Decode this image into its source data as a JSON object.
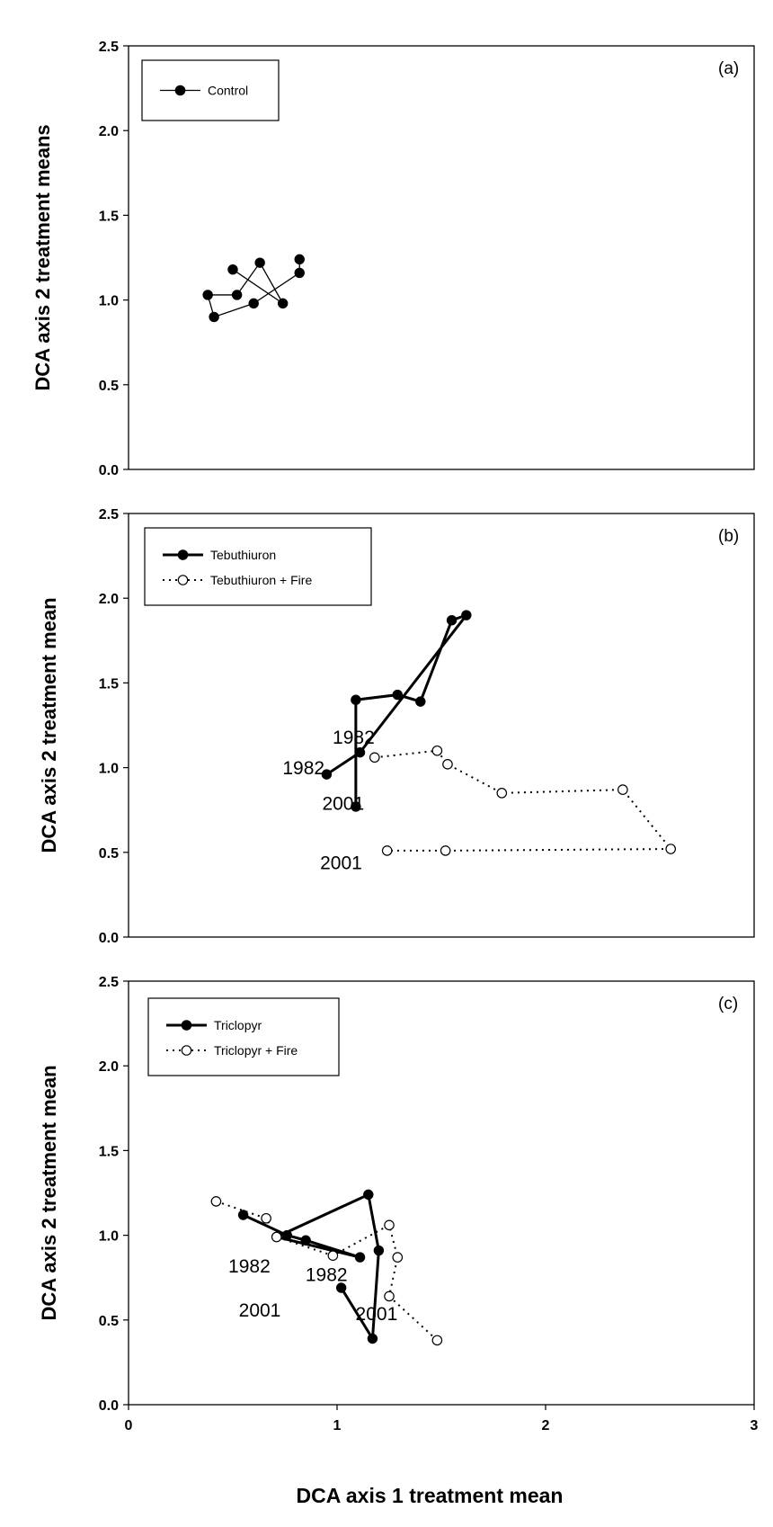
{
  "x_axis_title": "DCA axis 1 treatment mean",
  "colors": {
    "ink": "#000000",
    "open_fill": "#ffffff",
    "background": "#ffffff"
  },
  "chart_data": [
    {
      "type": "scatter",
      "panel_label": "(a)",
      "ylabel": "DCA axis 2 treatment means",
      "xlim": [
        0,
        3
      ],
      "ylim": [
        0,
        2.5
      ],
      "xticks": [],
      "yticks": [
        "0.0",
        "0.5",
        "1.0",
        "1.5",
        "2.0",
        "2.5"
      ],
      "series": [
        {
          "name": "Control",
          "marker": "filled",
          "line": "solid-thin",
          "x": [
            0.82,
            0.82,
            0.6,
            0.41,
            0.38,
            0.52,
            0.63,
            0.74,
            0.5
          ],
          "y": [
            1.24,
            1.16,
            0.98,
            0.9,
            1.03,
            1.03,
            1.22,
            0.98,
            1.18
          ]
        }
      ],
      "annotations": []
    },
    {
      "type": "scatter",
      "panel_label": "(b)",
      "ylabel": "DCA axis 2 treatment mean",
      "xlim": [
        0,
        3
      ],
      "ylim": [
        0,
        2.5
      ],
      "xticks": [],
      "yticks": [
        "0.0",
        "0.5",
        "1.0",
        "1.5",
        "2.0",
        "2.5"
      ],
      "series": [
        {
          "name": "Tebuthiuron",
          "marker": "filled",
          "line": "solid-thick",
          "x": [
            0.95,
            1.11,
            1.62,
            1.55,
            1.4,
            1.29,
            1.09,
            1.09
          ],
          "y": [
            0.96,
            1.09,
            1.9,
            1.87,
            1.39,
            1.43,
            1.4,
            0.77
          ]
        },
        {
          "name": "Tebuthiuron + Fire",
          "marker": "open",
          "line": "dotted",
          "x": [
            1.18,
            1.48,
            1.53,
            1.79,
            2.37,
            2.6,
            1.52,
            1.24
          ],
          "y": [
            1.06,
            1.1,
            1.02,
            0.85,
            0.87,
            0.52,
            0.51,
            0.51
          ]
        }
      ],
      "annotations": [
        {
          "text": "1982",
          "x": 0.94,
          "y": 0.96
        },
        {
          "text": "2001",
          "x": 1.13,
          "y": 0.75
        },
        {
          "text": "1982",
          "x": 1.18,
          "y": 1.14
        },
        {
          "text": "2001",
          "x": 1.12,
          "y": 0.4
        }
      ]
    },
    {
      "type": "scatter",
      "panel_label": "(c)",
      "ylabel": "DCA axis 2 treatment mean",
      "xlim": [
        0,
        3
      ],
      "ylim": [
        0,
        2.5
      ],
      "xticks": [
        "0",
        "1",
        "2",
        "3"
      ],
      "yticks": [
        "0.0",
        "0.5",
        "1.0",
        "1.5",
        "2.0",
        "2.5"
      ],
      "series": [
        {
          "name": "Triclopyr",
          "marker": "filled",
          "line": "solid-thick",
          "x": [
            0.55,
            0.76,
            0.85,
            1.11,
            0.71,
            1.15,
            1.2,
            1.17,
            1.02
          ],
          "y": [
            1.12,
            1.0,
            0.97,
            0.87,
            0.99,
            1.24,
            0.91,
            0.39,
            0.69
          ]
        },
        {
          "name": "Triclopyr + Fire",
          "marker": "open",
          "line": "dotted",
          "x": [
            0.42,
            0.66,
            0.71,
            0.98,
            1.25,
            1.29,
            1.25,
            1.48
          ],
          "y": [
            1.2,
            1.1,
            0.99,
            0.88,
            1.06,
            0.87,
            0.64,
            0.38
          ]
        }
      ],
      "annotations": [
        {
          "text": "1982",
          "x": 0.68,
          "y": 0.78
        },
        {
          "text": "1982",
          "x": 1.05,
          "y": 0.73
        },
        {
          "text": "2001",
          "x": 0.73,
          "y": 0.52
        },
        {
          "text": "2001",
          "x": 1.29,
          "y": 0.5
        }
      ]
    }
  ]
}
